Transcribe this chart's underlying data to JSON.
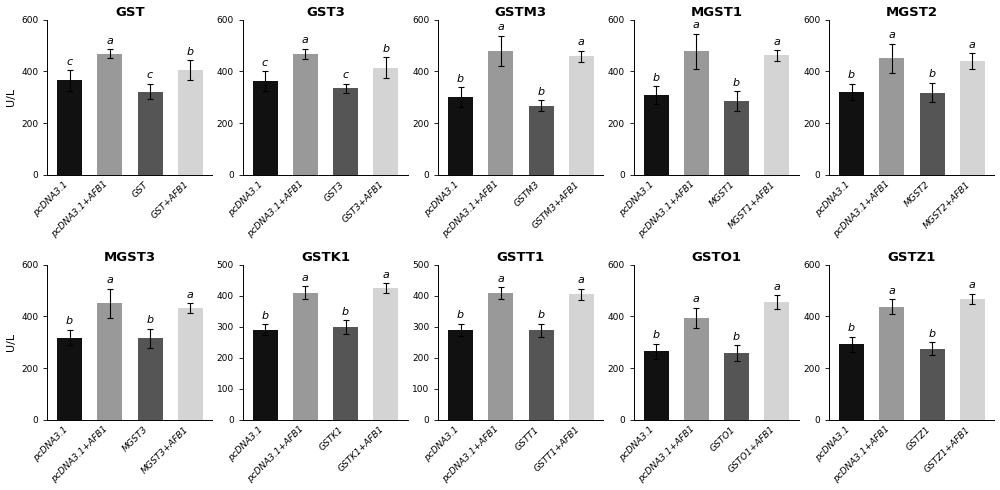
{
  "subplots": [
    {
      "title": "GST",
      "ylim": [
        0,
        600
      ],
      "yticks": [
        0,
        200,
        400,
        600
      ],
      "bars": [
        {
          "label": "pcDNA3.1",
          "value": 365,
          "err": 40,
          "color": "#111111",
          "sig": "c"
        },
        {
          "label": "pcDNA3.1+AFB1",
          "value": 468,
          "err": 18,
          "color": "#999999",
          "sig": "a"
        },
        {
          "label": "GST",
          "value": 322,
          "err": 30,
          "color": "#555555",
          "sig": "c"
        },
        {
          "label": "GST+AFB1",
          "value": 405,
          "err": 38,
          "color": "#d4d4d4",
          "sig": "b"
        }
      ]
    },
    {
      "title": "GST3",
      "ylim": [
        0,
        600
      ],
      "yticks": [
        0,
        200,
        400,
        600
      ],
      "bars": [
        {
          "label": "pcDNA3.1",
          "value": 362,
          "err": 38,
          "color": "#111111",
          "sig": "c"
        },
        {
          "label": "pcDNA3.1+AFB1",
          "value": 468,
          "err": 20,
          "color": "#999999",
          "sig": "a"
        },
        {
          "label": "GST3",
          "value": 335,
          "err": 18,
          "color": "#555555",
          "sig": "c"
        },
        {
          "label": "GST3+AFB1",
          "value": 415,
          "err": 40,
          "color": "#d4d4d4",
          "sig": "b"
        }
      ]
    },
    {
      "title": "GSTM3",
      "ylim": [
        0,
        600
      ],
      "yticks": [
        0,
        200,
        400,
        600
      ],
      "bars": [
        {
          "label": "pcDNA3.1",
          "value": 300,
          "err": 38,
          "color": "#111111",
          "sig": "b"
        },
        {
          "label": "pcDNA3.1+AFB1",
          "value": 480,
          "err": 58,
          "color": "#999999",
          "sig": "a"
        },
        {
          "label": "GSTM3",
          "value": 268,
          "err": 20,
          "color": "#555555",
          "sig": "b"
        },
        {
          "label": "GSTM3+AFB1",
          "value": 458,
          "err": 22,
          "color": "#d4d4d4",
          "sig": "a"
        }
      ]
    },
    {
      "title": "MGST1",
      "ylim": [
        0,
        600
      ],
      "yticks": [
        0,
        200,
        400,
        600
      ],
      "bars": [
        {
          "label": "pcDNA3.1",
          "value": 308,
          "err": 35,
          "color": "#111111",
          "sig": "b"
        },
        {
          "label": "pcDNA3.1+AFB1",
          "value": 478,
          "err": 68,
          "color": "#999999",
          "sig": "a"
        },
        {
          "label": "MGST1",
          "value": 285,
          "err": 38,
          "color": "#555555",
          "sig": "b"
        },
        {
          "label": "MGST1+AFB1",
          "value": 462,
          "err": 20,
          "color": "#d4d4d4",
          "sig": "a"
        }
      ]
    },
    {
      "title": "MGST2",
      "ylim": [
        0,
        600
      ],
      "yticks": [
        0,
        200,
        400,
        600
      ],
      "bars": [
        {
          "label": "pcDNA3.1",
          "value": 320,
          "err": 32,
          "color": "#111111",
          "sig": "b"
        },
        {
          "label": "pcDNA3.1+AFB1",
          "value": 450,
          "err": 58,
          "color": "#999999",
          "sig": "a"
        },
        {
          "label": "MGST2",
          "value": 318,
          "err": 38,
          "color": "#555555",
          "sig": "b"
        },
        {
          "label": "MGST2+AFB1",
          "value": 440,
          "err": 30,
          "color": "#d4d4d4",
          "sig": "a"
        }
      ]
    },
    {
      "title": "MGST3",
      "ylim": [
        0,
        600
      ],
      "yticks": [
        0,
        200,
        400,
        600
      ],
      "bars": [
        {
          "label": "pcDNA3.1",
          "value": 318,
          "err": 30,
          "color": "#111111",
          "sig": "b"
        },
        {
          "label": "pcDNA3.1+AFB1",
          "value": 450,
          "err": 58,
          "color": "#999999",
          "sig": "a"
        },
        {
          "label": "MGST3",
          "value": 315,
          "err": 38,
          "color": "#555555",
          "sig": "b"
        },
        {
          "label": "MGST3+AFB1",
          "value": 432,
          "err": 20,
          "color": "#d4d4d4",
          "sig": "a"
        }
      ]
    },
    {
      "title": "GSTK1",
      "ylim": [
        0,
        500
      ],
      "yticks": [
        0,
        100,
        200,
        300,
        400,
        500
      ],
      "bars": [
        {
          "label": "pcDNA3.1",
          "value": 290,
          "err": 18,
          "color": "#111111",
          "sig": "b"
        },
        {
          "label": "pcDNA3.1+AFB1",
          "value": 410,
          "err": 20,
          "color": "#999999",
          "sig": "a"
        },
        {
          "label": "GSTK1",
          "value": 300,
          "err": 22,
          "color": "#555555",
          "sig": "b"
        },
        {
          "label": "GSTK1+AFB1",
          "value": 425,
          "err": 15,
          "color": "#d4d4d4",
          "sig": "a"
        }
      ]
    },
    {
      "title": "GSTT1",
      "ylim": [
        0,
        500
      ],
      "yticks": [
        0,
        100,
        200,
        300,
        400,
        500
      ],
      "bars": [
        {
          "label": "pcDNA3.1",
          "value": 290,
          "err": 20,
          "color": "#111111",
          "sig": "b"
        },
        {
          "label": "pcDNA3.1+AFB1",
          "value": 408,
          "err": 20,
          "color": "#999999",
          "sig": "a"
        },
        {
          "label": "GSTT1",
          "value": 288,
          "err": 22,
          "color": "#555555",
          "sig": "b"
        },
        {
          "label": "GSTT1+AFB1",
          "value": 405,
          "err": 18,
          "color": "#d4d4d4",
          "sig": "a"
        }
      ]
    },
    {
      "title": "GSTO1",
      "ylim": [
        0,
        600
      ],
      "yticks": [
        0,
        200,
        400,
        600
      ],
      "bars": [
        {
          "label": "pcDNA3.1",
          "value": 265,
          "err": 30,
          "color": "#111111",
          "sig": "b"
        },
        {
          "label": "pcDNA3.1+AFB1",
          "value": 395,
          "err": 38,
          "color": "#999999",
          "sig": "a"
        },
        {
          "label": "GSTO1",
          "value": 258,
          "err": 30,
          "color": "#555555",
          "sig": "b"
        },
        {
          "label": "GSTO1+AFB1",
          "value": 455,
          "err": 28,
          "color": "#d4d4d4",
          "sig": "a"
        }
      ]
    },
    {
      "title": "GSTZ1",
      "ylim": [
        0,
        600
      ],
      "yticks": [
        0,
        200,
        400,
        600
      ],
      "bars": [
        {
          "label": "pcDNA3.1",
          "value": 292,
          "err": 30,
          "color": "#111111",
          "sig": "b"
        },
        {
          "label": "pcDNA3.1+AFB1",
          "value": 438,
          "err": 28,
          "color": "#999999",
          "sig": "a"
        },
        {
          "label": "GSTZ1",
          "value": 275,
          "err": 25,
          "color": "#555555",
          "sig": "b"
        },
        {
          "label": "GSTZ1+AFB1",
          "value": 468,
          "err": 20,
          "color": "#d4d4d4",
          "sig": "a"
        }
      ]
    }
  ],
  "ylabel": "U/L",
  "nrows": 2,
  "ncols": 5,
  "bar_width": 0.62,
  "title_fontsize": 9.5,
  "tick_fontsize": 6.5,
  "label_fontsize": 6.5,
  "sig_fontsize": 8,
  "ylabel_fontsize": 8,
  "background_color": "#ffffff"
}
